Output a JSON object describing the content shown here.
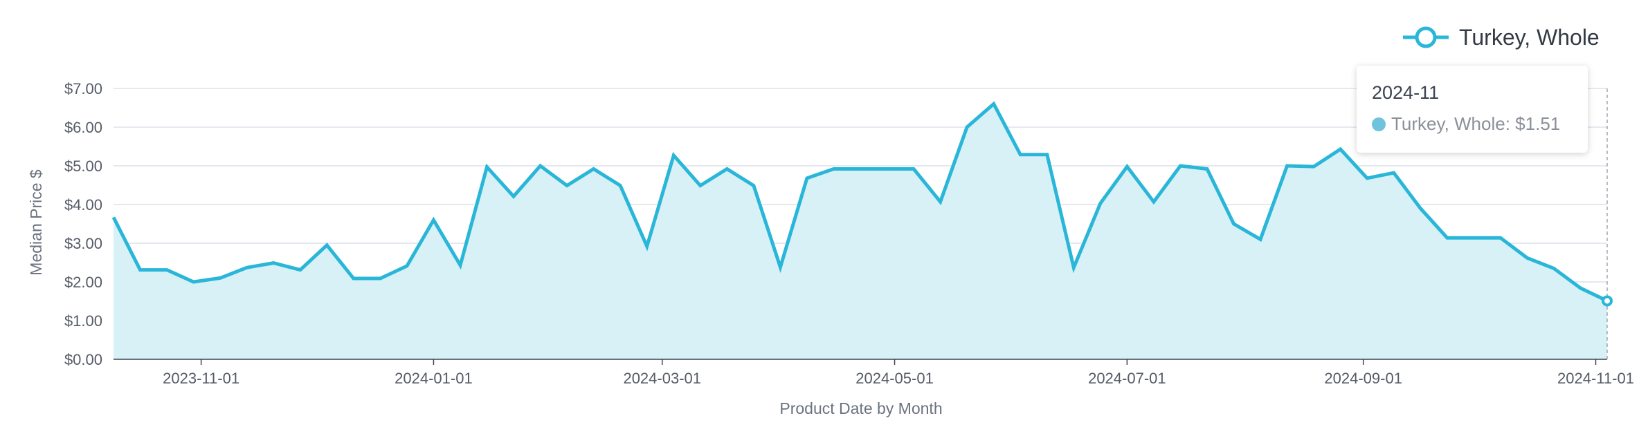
{
  "colors": {
    "series": "#29b6d8",
    "area": "#d8f1f7",
    "grid": "#d6dbe8",
    "axis": "#3c4350"
  },
  "legend": {
    "label": "Turkey, Whole",
    "position": "top-right"
  },
  "tooltip": {
    "title": "2024-11",
    "series": "Turkey, Whole",
    "value": "$1.51",
    "dot_color": "#6fc3dc"
  },
  "chart_data": {
    "type": "area",
    "title": "",
    "xlabel": "Product Date by Month",
    "ylabel": "Median Price $",
    "ylim": [
      0,
      7
    ],
    "y_ticks": [
      "$0.00",
      "$1.00",
      "$2.00",
      "$3.00",
      "$4.00",
      "$5.00",
      "$6.00",
      "$7.00"
    ],
    "x_ticks": [
      "2023-11-01",
      "2024-01-01",
      "2024-03-01",
      "2024-05-01",
      "2024-07-01",
      "2024-09-01",
      "2024-11-01"
    ],
    "x_range": [
      "2023-10-09",
      "2024-11-04"
    ],
    "grid": true,
    "series": [
      {
        "name": "Turkey, Whole",
        "x": [
          "2023-10-09",
          "2023-10-16",
          "2023-10-23",
          "2023-10-30",
          "2023-11-06",
          "2023-11-13",
          "2023-11-20",
          "2023-11-27",
          "2023-12-04",
          "2023-12-11",
          "2023-12-18",
          "2023-12-25",
          "2024-01-01",
          "2024-01-08",
          "2024-01-15",
          "2024-01-22",
          "2024-01-29",
          "2024-02-05",
          "2024-02-12",
          "2024-02-19",
          "2024-02-26",
          "2024-03-04",
          "2024-03-11",
          "2024-03-18",
          "2024-03-25",
          "2024-04-01",
          "2024-04-08",
          "2024-04-15",
          "2024-04-22",
          "2024-04-29",
          "2024-05-06",
          "2024-05-13",
          "2024-05-20",
          "2024-05-27",
          "2024-06-03",
          "2024-06-10",
          "2024-06-17",
          "2024-06-24",
          "2024-07-01",
          "2024-07-08",
          "2024-07-15",
          "2024-07-22",
          "2024-07-29",
          "2024-08-05",
          "2024-08-12",
          "2024-08-19",
          "2024-08-26",
          "2024-09-02",
          "2024-09-09",
          "2024-09-16",
          "2024-09-23",
          "2024-09-30",
          "2024-10-07",
          "2024-10-14",
          "2024-10-21",
          "2024-10-28",
          "2024-11-04"
        ],
        "values": [
          3.67,
          2.31,
          2.31,
          2.0,
          2.1,
          2.37,
          2.49,
          2.31,
          2.95,
          2.09,
          2.09,
          2.41,
          3.6,
          2.43,
          4.97,
          4.21,
          5.0,
          4.49,
          4.92,
          4.49,
          2.92,
          5.27,
          4.49,
          4.92,
          4.49,
          2.38,
          4.68,
          4.92,
          4.92,
          4.92,
          4.92,
          4.07,
          6.0,
          6.6,
          5.29,
          5.29,
          2.37,
          4.03,
          4.98,
          4.07,
          5.0,
          4.92,
          3.5,
          3.1,
          5.0,
          4.98,
          5.43,
          4.68,
          4.82,
          3.9,
          3.14,
          3.14,
          3.14,
          2.62,
          2.35,
          1.84,
          1.51
        ]
      }
    ]
  }
}
